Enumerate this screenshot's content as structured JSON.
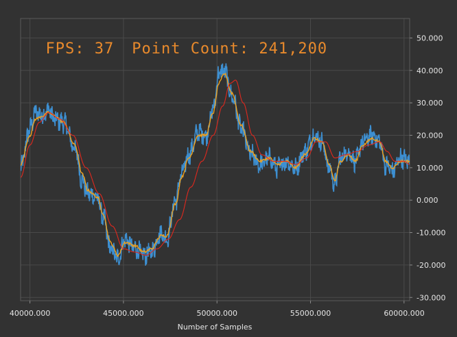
{
  "overlay": {
    "fps_label": "FPS: 37",
    "point_count_label": "Point Count: 241,200"
  },
  "colors": {
    "background": "#323232",
    "plot_border": "#5a5a5a",
    "grid": "#4a4a4a",
    "raw_series": "#3d8fd1",
    "fast_ma": "#f0a21e",
    "slow_ma": "#e0281e",
    "overlay_text": "#e98a2c"
  },
  "chart_data": {
    "type": "line",
    "title": "",
    "xlabel": "Number of Samples",
    "ylabel": "",
    "xlim": [
      39500,
      60300
    ],
    "ylim": [
      -31,
      56
    ],
    "x_ticks": [
      40000,
      45000,
      50000,
      55000,
      60000
    ],
    "x_tick_labels": [
      "40000.000",
      "45000.000",
      "50000.000",
      "55000.000",
      "60000.000"
    ],
    "y_ticks": [
      50,
      40,
      30,
      20,
      10,
      0,
      -10,
      -20,
      -30
    ],
    "y_tick_labels": [
      "50.000",
      "40.000",
      "30.000",
      "20.000",
      "10.000",
      "0.000",
      "-10.000",
      "-20.000",
      "-30.000"
    ],
    "y_axis_position": "right",
    "grid": true,
    "series": [
      {
        "role": "raw",
        "color": "#3d8fd1",
        "points": [
          [
            39500,
            10
          ],
          [
            40000,
            22
          ],
          [
            40300,
            27
          ],
          [
            40700,
            26
          ],
          [
            41000,
            28
          ],
          [
            41300,
            25
          ],
          [
            41800,
            24
          ],
          [
            42400,
            16
          ],
          [
            42800,
            6
          ],
          [
            43100,
            2
          ],
          [
            43600,
            1
          ],
          [
            43900,
            -5
          ],
          [
            44300,
            -15
          ],
          [
            44700,
            -18
          ],
          [
            45100,
            -12
          ],
          [
            45600,
            -15
          ],
          [
            46100,
            -17
          ],
          [
            46500,
            -16
          ],
          [
            47000,
            -10
          ],
          [
            47300,
            -12
          ],
          [
            47800,
            0
          ],
          [
            48100,
            8
          ],
          [
            48500,
            14
          ],
          [
            49000,
            21
          ],
          [
            49400,
            20
          ],
          [
            49800,
            28
          ],
          [
            50100,
            39
          ],
          [
            50400,
            40
          ],
          [
            50800,
            32
          ],
          [
            51300,
            22
          ],
          [
            51800,
            14
          ],
          [
            52300,
            11
          ],
          [
            52800,
            13
          ],
          [
            53200,
            10
          ],
          [
            53700,
            12
          ],
          [
            54200,
            10
          ],
          [
            54700,
            15
          ],
          [
            55200,
            20
          ],
          [
            55600,
            18
          ],
          [
            56000,
            10
          ],
          [
            56300,
            5
          ],
          [
            56600,
            13
          ],
          [
            57000,
            15
          ],
          [
            57400,
            12
          ],
          [
            57800,
            18
          ],
          [
            58300,
            20
          ],
          [
            58700,
            18
          ],
          [
            59000,
            11
          ],
          [
            59400,
            9
          ],
          [
            59800,
            13
          ],
          [
            60300,
            12
          ]
        ]
      },
      {
        "role": "fast_moving_average",
        "color": "#f0a21e",
        "points": [
          [
            39500,
            11
          ],
          [
            40000,
            20
          ],
          [
            40300,
            25
          ],
          [
            40700,
            26
          ],
          [
            41000,
            27
          ],
          [
            41300,
            26
          ],
          [
            41800,
            24
          ],
          [
            42400,
            17
          ],
          [
            42800,
            8
          ],
          [
            43100,
            3
          ],
          [
            43600,
            1
          ],
          [
            43900,
            -4
          ],
          [
            44300,
            -13
          ],
          [
            44700,
            -17
          ],
          [
            45100,
            -13
          ],
          [
            45600,
            -14
          ],
          [
            46100,
            -16
          ],
          [
            46500,
            -15
          ],
          [
            47000,
            -11
          ],
          [
            47300,
            -11
          ],
          [
            47800,
            -1
          ],
          [
            48100,
            7
          ],
          [
            48500,
            13
          ],
          [
            49000,
            20
          ],
          [
            49400,
            20
          ],
          [
            49800,
            27
          ],
          [
            50100,
            36
          ],
          [
            50400,
            39
          ],
          [
            50800,
            33
          ],
          [
            51300,
            23
          ],
          [
            51800,
            15
          ],
          [
            52300,
            12
          ],
          [
            52800,
            13
          ],
          [
            53200,
            11
          ],
          [
            53700,
            12
          ],
          [
            54200,
            10
          ],
          [
            54700,
            14
          ],
          [
            55200,
            19
          ],
          [
            55600,
            18
          ],
          [
            56000,
            11
          ],
          [
            56300,
            6
          ],
          [
            56600,
            12
          ],
          [
            57000,
            14
          ],
          [
            57400,
            12
          ],
          [
            57800,
            17
          ],
          [
            58300,
            19
          ],
          [
            58700,
            18
          ],
          [
            59000,
            12
          ],
          [
            59400,
            10
          ],
          [
            59800,
            12
          ],
          [
            60300,
            12
          ]
        ]
      },
      {
        "role": "slow_moving_average",
        "color": "#e0281e",
        "points": [
          [
            39500,
            7
          ],
          [
            40000,
            17
          ],
          [
            40500,
            24
          ],
          [
            41000,
            27
          ],
          [
            41600,
            25
          ],
          [
            42300,
            20
          ],
          [
            43000,
            10
          ],
          [
            43700,
            2
          ],
          [
            44400,
            -8
          ],
          [
            45000,
            -15
          ],
          [
            45600,
            -16
          ],
          [
            46200,
            -17
          ],
          [
            46800,
            -15
          ],
          [
            47400,
            -12
          ],
          [
            48000,
            -6
          ],
          [
            48600,
            4
          ],
          [
            49200,
            12
          ],
          [
            49800,
            20
          ],
          [
            50300,
            29
          ],
          [
            50700,
            36
          ],
          [
            51000,
            37
          ],
          [
            51400,
            30
          ],
          [
            51900,
            20
          ],
          [
            52400,
            14
          ],
          [
            53000,
            12
          ],
          [
            53600,
            12
          ],
          [
            54200,
            11
          ],
          [
            54800,
            13
          ],
          [
            55300,
            18
          ],
          [
            55800,
            18
          ],
          [
            56300,
            13
          ],
          [
            56900,
            14
          ],
          [
            57500,
            15
          ],
          [
            58100,
            17
          ],
          [
            58700,
            18
          ],
          [
            59100,
            15
          ],
          [
            59500,
            12
          ],
          [
            60000,
            12
          ],
          [
            60300,
            11
          ]
        ]
      }
    ]
  }
}
